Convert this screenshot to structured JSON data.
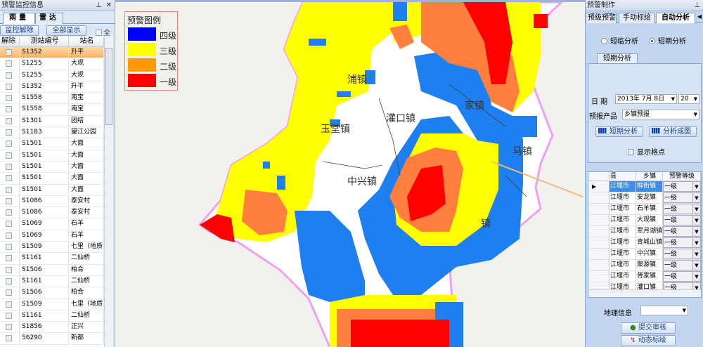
{
  "left_panel": {
    "title": "预警监控信息",
    "tabs": [
      {
        "label": "雨量",
        "active": true
      },
      {
        "label": "雷达",
        "active": false
      }
    ],
    "buttons": {
      "release": "监控解除",
      "show_all": "全部显示",
      "select_all": "全"
    },
    "columns": [
      "解除",
      "测站编号",
      "站名"
    ],
    "rows": [
      {
        "id": "S1352",
        "name": "升平",
        "selected": true
      },
      {
        "id": "S1255",
        "name": "大观"
      },
      {
        "id": "S1255",
        "name": "大观"
      },
      {
        "id": "S1352",
        "name": "升平"
      },
      {
        "id": "S1558",
        "name": "南宝"
      },
      {
        "id": "S1558",
        "name": "南宝"
      },
      {
        "id": "S1301",
        "name": "团结"
      },
      {
        "id": "S1183",
        "name": "望江公园"
      },
      {
        "id": "S1501",
        "name": "大面"
      },
      {
        "id": "S1501",
        "name": "大面"
      },
      {
        "id": "S1501",
        "name": "大面"
      },
      {
        "id": "S1501",
        "name": "大面"
      },
      {
        "id": "S1501",
        "name": "大面"
      },
      {
        "id": "S1086",
        "name": "泰安村"
      },
      {
        "id": "S1086",
        "name": "泰安村"
      },
      {
        "id": "S1069",
        "name": "石羊"
      },
      {
        "id": "S1069",
        "name": "石羊"
      },
      {
        "id": "S1509",
        "name": "七里（地质实"
      },
      {
        "id": "S1161",
        "name": "二仙桥"
      },
      {
        "id": "S1506",
        "name": "柏合"
      },
      {
        "id": "S1161",
        "name": "二仙桥"
      },
      {
        "id": "S1506",
        "name": "柏合"
      },
      {
        "id": "S1509",
        "name": "七里（地质实"
      },
      {
        "id": "S1161",
        "name": "二仙桥"
      },
      {
        "id": "S1856",
        "name": "正兴"
      },
      {
        "id": "56290",
        "name": "新都"
      }
    ]
  },
  "map": {
    "legend": {
      "title": "预警图例",
      "items": [
        {
          "label": "四级",
          "color": "#0000ff"
        },
        {
          "label": "三级",
          "color": "#ffff00"
        },
        {
          "label": "二级",
          "color": "#ff9900"
        },
        {
          "label": "一级",
          "color": "#ff0000"
        }
      ]
    },
    "town_labels": [
      "浦镇",
      "玉堂镇",
      "灌口镇",
      "家镇",
      "中兴镇",
      "马镇",
      "镇"
    ],
    "render_colors": {
      "level4": "#1e7ff0",
      "level3": "#ffff00",
      "level2": "#ff7f3f",
      "level1": "#ff0000",
      "boundary": "#f0a0f0"
    }
  },
  "right_panel": {
    "title": "预警制作",
    "tabs": [
      {
        "label": "预级预警"
      },
      {
        "label": "手动标绘"
      },
      {
        "label": "自动分析",
        "active": true
      }
    ],
    "radios": [
      {
        "label": "短临分析",
        "checked": false
      },
      {
        "label": "短期分析",
        "checked": true
      }
    ],
    "subtab": "短期分析",
    "date_label": "日  期",
    "date_value": "2013年 7月 8日",
    "hour_value": "20",
    "product_label": "预报产品",
    "product_value": "乡镇预报",
    "btn_analyze": "短期分析",
    "btn_chart": "分析成图",
    "show_grid_label": "显示格点",
    "table": {
      "columns": [
        "县",
        "乡镇",
        "预警等级"
      ],
      "rows": [
        {
          "county": "江堰市",
          "town": "柳街镇",
          "level": "一级",
          "selected": true
        },
        {
          "county": "江堰市",
          "town": "安龙镇",
          "level": "一级"
        },
        {
          "county": "江堰市",
          "town": "石羊镇",
          "level": "一级"
        },
        {
          "county": "江堰市",
          "town": "大观镇",
          "level": "一级"
        },
        {
          "county": "江堰市",
          "town": "翠月湖镇",
          "level": "一级"
        },
        {
          "county": "江堰市",
          "town": "青城山镇",
          "level": "一级"
        },
        {
          "county": "江堰市",
          "town": "中兴镇",
          "level": "一级"
        },
        {
          "county": "江堰市",
          "town": "聚源镇",
          "level": "一级"
        },
        {
          "county": "江堰市",
          "town": "胥家镇",
          "level": "一级"
        },
        {
          "county": "江堰市",
          "town": "灌口镇",
          "level": "一级"
        }
      ]
    },
    "geo_label": "地理信息",
    "geo_value": "",
    "submit_btn": "提交审核",
    "dynamic_btn": "动态标绘"
  }
}
